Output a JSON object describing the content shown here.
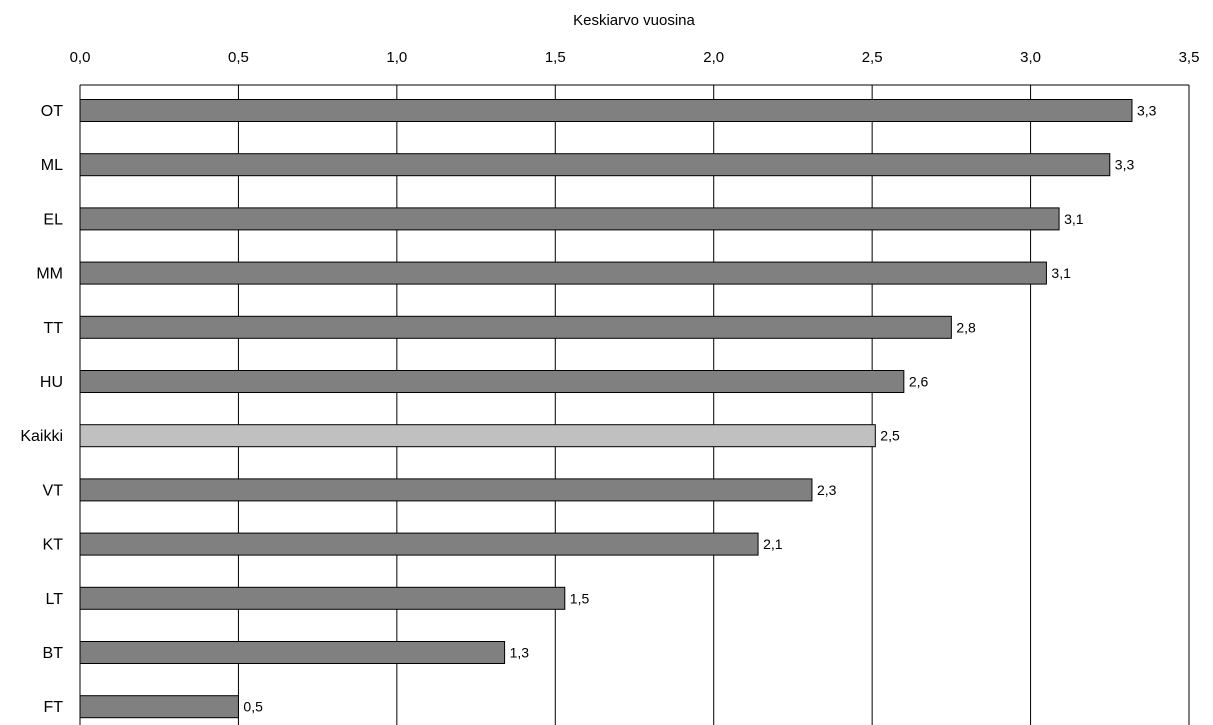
{
  "chart_data": {
    "type": "bar",
    "orientation": "horizontal",
    "title": "",
    "xlabel": "Keskiarvo vuosina",
    "ylabel": "",
    "xlim": [
      0,
      3.5
    ],
    "x_axis_position": "top",
    "x_ticks": [
      "0,0",
      "0,5",
      "1,0",
      "1,5",
      "2,0",
      "2,5",
      "3,0",
      "3,5"
    ],
    "x_tick_values": [
      0,
      0.5,
      1.0,
      1.5,
      2.0,
      2.5,
      3.0,
      3.5
    ],
    "grid": "vertical",
    "legend": "none",
    "categories": [
      "OT",
      "ML",
      "EL",
      "MM",
      "TT",
      "HU",
      "Kaikki",
      "VT",
      "KT",
      "LT",
      "BT",
      "FT"
    ],
    "values": [
      3.32,
      3.25,
      3.09,
      3.05,
      2.75,
      2.6,
      2.51,
      2.31,
      2.14,
      1.53,
      1.34,
      0.5
    ],
    "value_labels": [
      "3,3",
      "3,3",
      "3,1",
      "3,1",
      "2,8",
      "2,6",
      "2,5",
      "2,3",
      "2,1",
      "1,5",
      "1,3",
      "0,5"
    ],
    "colors": {
      "bar": "#808080",
      "highlight_bar": "#c0c0c0",
      "highlight_category": "Kaikki",
      "bar_stroke": "#000000",
      "grid": "#000000"
    }
  }
}
